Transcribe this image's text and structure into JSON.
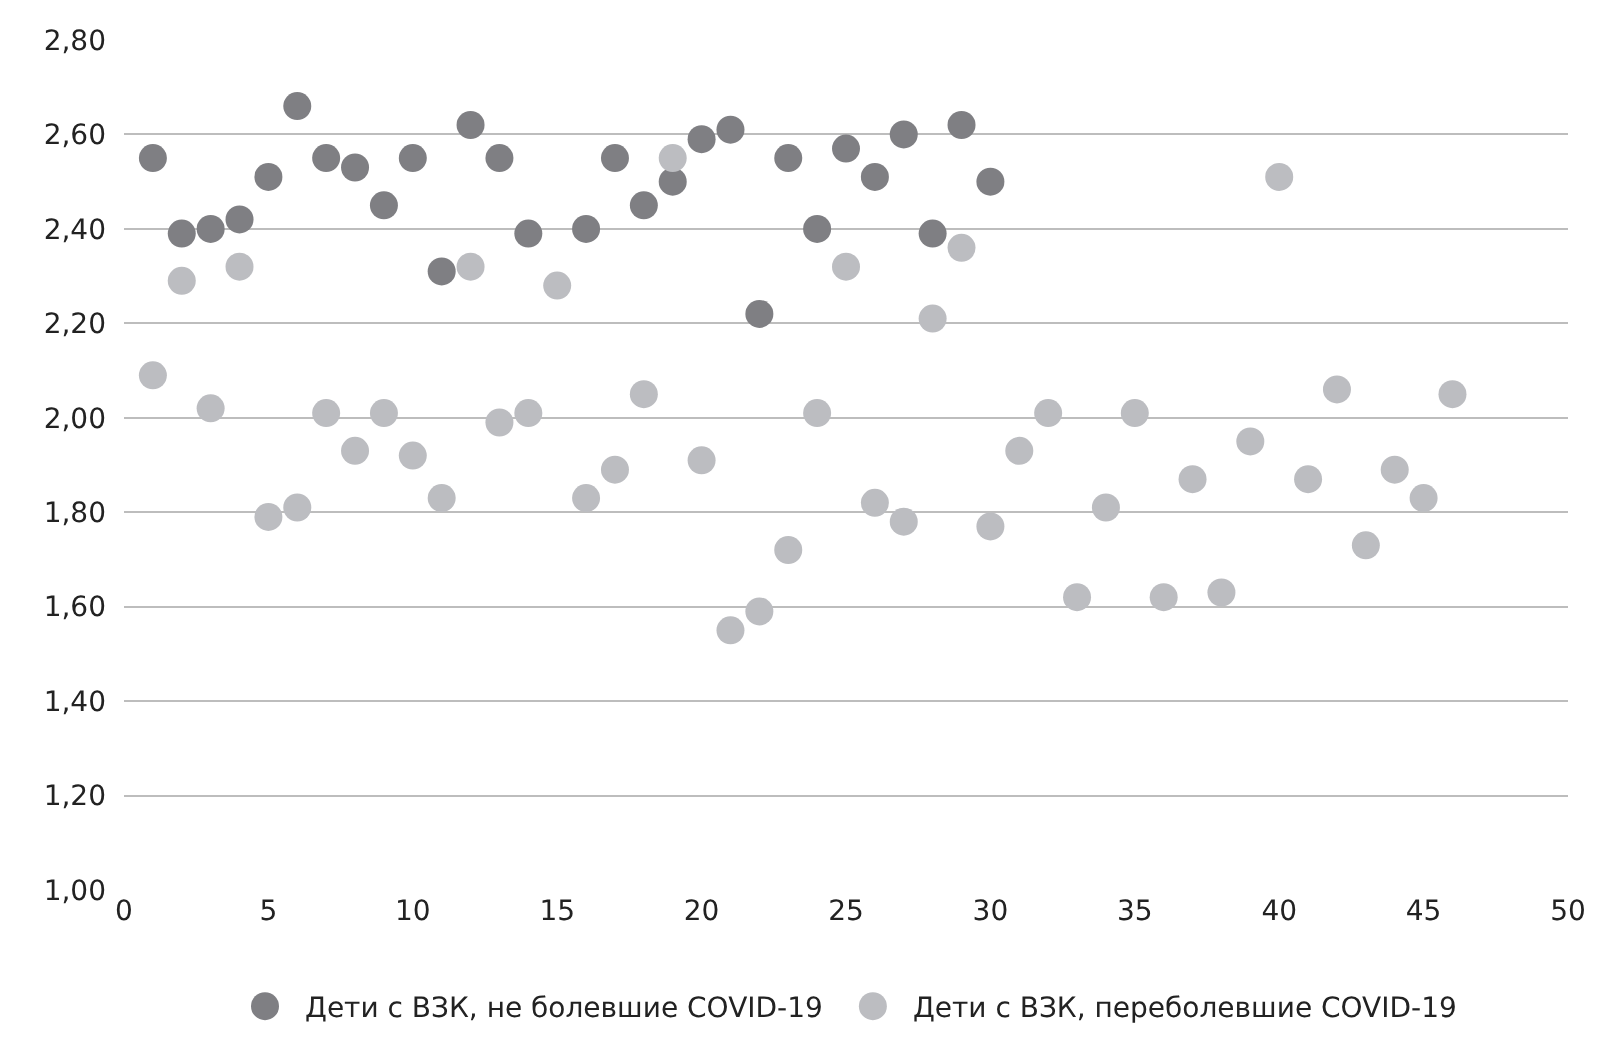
{
  "chart_data": {
    "type": "scatter",
    "marker": "circle",
    "grid": "y",
    "legend": "bottom",
    "xlim": [
      0,
      50
    ],
    "xticks": [
      0,
      5,
      10,
      15,
      20,
      25,
      30,
      35,
      40,
      45,
      50
    ],
    "ylim": [
      1.0,
      2.8
    ],
    "yticks": [
      {
        "value": 1.0,
        "label": "1,00"
      },
      {
        "value": 1.2,
        "label": "1,20"
      },
      {
        "value": 1.4,
        "label": "1,40"
      },
      {
        "value": 1.6,
        "label": "1,60"
      },
      {
        "value": 1.8,
        "label": "1,80"
      },
      {
        "value": 2.0,
        "label": "2,00"
      },
      {
        "value": 2.2,
        "label": "2,20"
      },
      {
        "value": 2.4,
        "label": "2,40"
      },
      {
        "value": 2.6,
        "label": "2,60"
      },
      {
        "value": 2.8,
        "label": "2,80"
      }
    ],
    "series": [
      {
        "name": "Дети с ВЗК, не болевшие COVID-19",
        "color": "#7f7f83",
        "x": [
          1,
          2,
          3,
          4,
          5,
          6,
          7,
          8,
          9,
          10,
          11,
          12,
          13,
          14,
          16,
          17,
          18,
          19,
          20,
          21,
          22,
          23,
          24,
          25,
          26,
          27,
          28,
          29,
          30
        ],
        "values": [
          2.55,
          2.39,
          2.4,
          2.42,
          2.51,
          2.66,
          2.55,
          2.53,
          2.45,
          2.55,
          2.31,
          2.62,
          2.55,
          2.39,
          2.4,
          2.55,
          2.45,
          2.5,
          2.59,
          2.61,
          2.22,
          2.55,
          2.4,
          2.57,
          2.51,
          2.6,
          2.39,
          2.62,
          2.5
        ]
      },
      {
        "name": "Дети с ВЗК, переболевшие COVID-19",
        "color": "#bcbdc1",
        "x": [
          1,
          2,
          3,
          4,
          5,
          6,
          7,
          8,
          9,
          10,
          11,
          12,
          13,
          14,
          15,
          16,
          17,
          18,
          19,
          20,
          21,
          22,
          23,
          24,
          25,
          26,
          27,
          28,
          29,
          30,
          31,
          32,
          33,
          34,
          35,
          36,
          37,
          38,
          39,
          40,
          41,
          42,
          43,
          44,
          45,
          46
        ],
        "values": [
          2.09,
          2.29,
          2.02,
          2.32,
          1.79,
          1.81,
          2.01,
          1.93,
          2.01,
          1.92,
          1.83,
          2.32,
          1.99,
          2.01,
          2.28,
          1.83,
          1.89,
          2.05,
          2.55,
          1.91,
          1.55,
          1.59,
          1.72,
          2.01,
          2.32,
          1.82,
          1.78,
          2.21,
          2.36,
          1.77,
          1.93,
          2.01,
          1.62,
          1.81,
          2.01,
          1.62,
          1.87,
          1.63,
          1.95,
          2.51,
          1.87,
          2.06,
          1.73,
          1.89,
          1.83,
          2.05
        ]
      }
    ]
  }
}
